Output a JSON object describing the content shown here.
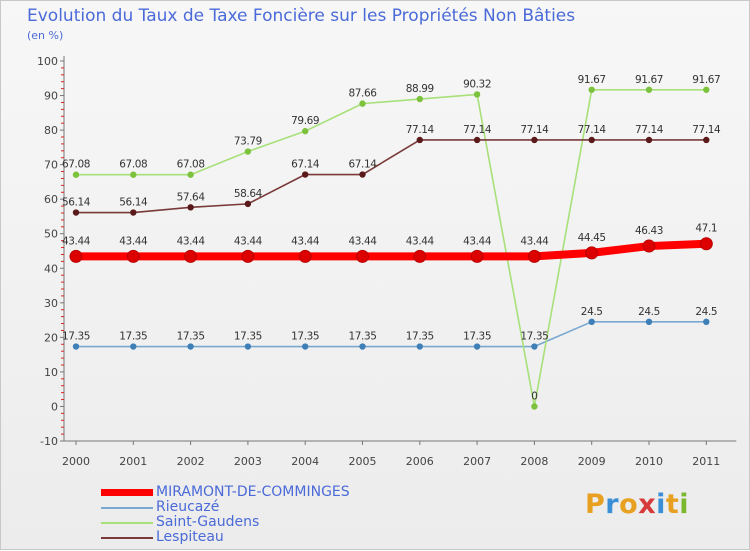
{
  "title": "Evolution du Taux de Taxe Foncière sur les Propriétés Non Bâties",
  "subtitle": "(en %)",
  "logo": {
    "text": "Proxiti",
    "colors": [
      "#e8a020",
      "#3a8fd6",
      "#e8a020",
      "#d63a3a",
      "#3a8fd6",
      "#e8a020",
      "#7ab82e"
    ]
  },
  "chart_data": {
    "type": "line",
    "title": "Evolution du Taux de Taxe Foncière sur les Propriétés Non Bâties",
    "ylabel": "(en %)",
    "xlabel": "",
    "x": [
      "2000",
      "2001",
      "2002",
      "2003",
      "2004",
      "2005",
      "2006",
      "2007",
      "2008",
      "2009",
      "2010",
      "2011"
    ],
    "ylim": [
      -10,
      100
    ],
    "yticks": [
      "-10",
      "0",
      "10",
      "20",
      "30",
      "40",
      "50",
      "60",
      "70",
      "80",
      "90",
      "100"
    ],
    "grid": false,
    "series": [
      {
        "name": "MIRAMONT-DE-COMMINGES",
        "color": "#ff0000",
        "marker": "#dd0000",
        "bold": true,
        "values": [
          43.44,
          43.44,
          43.44,
          43.44,
          43.44,
          43.44,
          43.44,
          43.44,
          43.44,
          44.45,
          46.43,
          47.1
        ],
        "labels": [
          "43.44",
          "43.44",
          "43.44",
          "43.44",
          "43.44",
          "43.44",
          "43.44",
          "43.44",
          "43.44",
          "44.45",
          "46.43",
          "47.1"
        ]
      },
      {
        "name": "Rieucazé",
        "color": "#78a8d0",
        "marker": "#3f7fb8",
        "bold": false,
        "values": [
          17.35,
          17.35,
          17.35,
          17.35,
          17.35,
          17.35,
          17.35,
          17.35,
          17.35,
          24.5,
          24.5,
          24.5
        ],
        "labels": [
          "17.35",
          "17.35",
          "17.35",
          "17.35",
          "17.35",
          "17.35",
          "17.35",
          "17.35",
          "17.35",
          "24.5",
          "24.5",
          "24.5"
        ]
      },
      {
        "name": "Saint-Gaudens",
        "color": "#a8e07a",
        "marker": "#7cc23c",
        "bold": false,
        "values": [
          67.08,
          67.08,
          67.08,
          73.79,
          79.69,
          87.66,
          88.99,
          90.32,
          0,
          91.67,
          91.67,
          91.67
        ],
        "labels": [
          "67.08",
          "67.08",
          "67.08",
          "73.79",
          "79.69",
          "87.66",
          "88.99",
          "90.32",
          "0",
          "91.67",
          "91.67",
          "91.67"
        ]
      },
      {
        "name": "Lespiteau",
        "color": "#7a3a3a",
        "marker": "#5a1a1a",
        "bold": false,
        "values": [
          56.14,
          56.14,
          57.64,
          58.64,
          67.14,
          67.14,
          77.14,
          77.14,
          77.14,
          77.14,
          77.14,
          77.14
        ],
        "labels": [
          "56.14",
          "56.14",
          "57.64",
          "58.64",
          "67.14",
          "67.14",
          "77.14",
          "77.14",
          "77.14",
          "77.14",
          "77.14",
          "77.14"
        ]
      }
    ]
  }
}
